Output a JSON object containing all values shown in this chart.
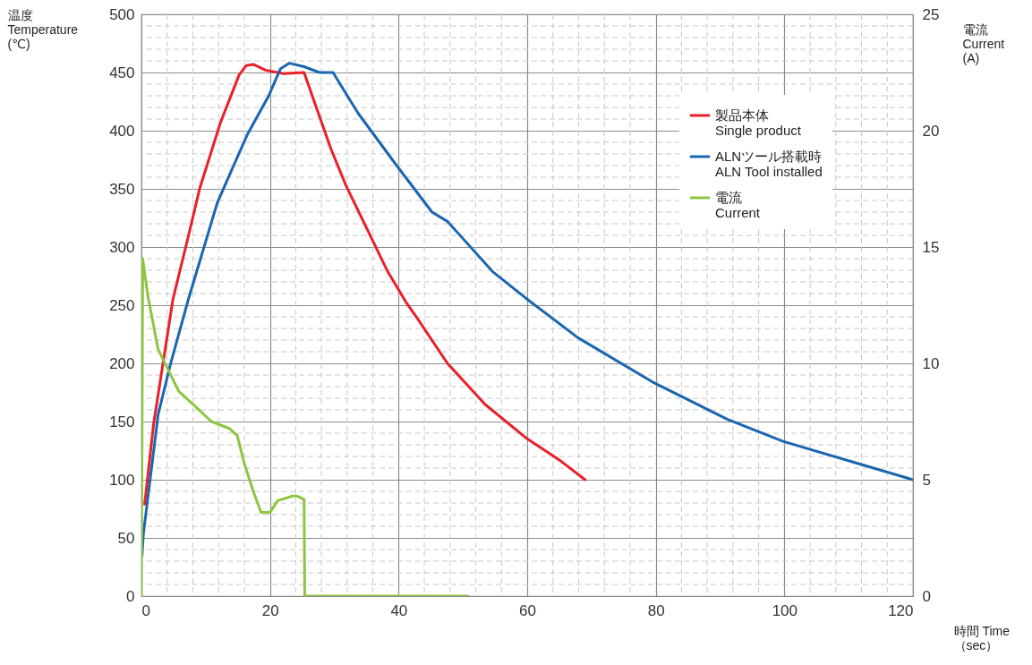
{
  "chart_data": {
    "type": "line",
    "xlabel": "時間 Time\n（sec）",
    "ylabel": "温度\nTemperature\n(℃)",
    "y2label": "電流\nCurrent\n(A)",
    "xlim": [
      0,
      120
    ],
    "xticks": [
      0,
      20,
      40,
      60,
      80,
      100,
      120
    ],
    "ylim": [
      0,
      500
    ],
    "yticks": [
      0,
      50,
      100,
      150,
      200,
      250,
      300,
      350,
      400,
      450,
      500
    ],
    "y2lim": [
      0,
      25
    ],
    "y2ticks": [
      0,
      5,
      10,
      15,
      20,
      25
    ],
    "grid": true,
    "legend": "top right",
    "line_style": "solid",
    "marker": "none",
    "series": [
      {
        "name": "製品本体\nSingle product",
        "color": "#e8202a",
        "x": [
          0.5,
          1.9,
          4.9,
          7.2,
          9.1,
          12.3,
          15.2,
          16.3,
          17.4,
          19.3,
          22.1,
          25.3,
          27.2,
          29.5,
          31.8,
          34.7,
          38.3,
          41.1,
          43,
          47.6,
          53.4,
          59.8,
          65,
          69
        ],
        "values": [
          79,
          148,
          255,
          307,
          351,
          407,
          448,
          456,
          457,
          452,
          449,
          450,
          420,
          384,
          353,
          320,
          279,
          253,
          238,
          200,
          165,
          136,
          117,
          100
        ]
      },
      {
        "name": "ALNツール搭載時\nALN Tool installed",
        "color": "#1a66b0",
        "x": [
          0.1,
          0.3,
          2.6,
          4.5,
          7.3,
          11.8,
          16.5,
          19.8,
          21.6,
          23,
          25.3,
          27.7,
          29.8,
          33.7,
          39.7,
          45.2,
          47.6,
          54.6,
          59.8,
          67.9,
          79.5,
          91.1,
          99.8,
          111.4,
          120
        ],
        "values": [
          35,
          53,
          156,
          199,
          255,
          338,
          397,
          430,
          453,
          458,
          455,
          450,
          450,
          415,
          370,
          330,
          322,
          279,
          256,
          222,
          184,
          152,
          133,
          114,
          100
        ]
      },
      {
        "name": "電流\nCurrent",
        "color": "#8cc63f",
        "axis": "y2",
        "x": [
          0,
          0.2,
          1,
          2.6,
          5.8,
          8.2,
          10.9,
          13.7,
          14.9,
          16,
          17.4,
          18.6,
          20,
          21.2,
          23.5,
          24.2,
          25.3,
          25.4,
          50.8
        ],
        "values": [
          0,
          14.5,
          12.9,
          10.6,
          8.8,
          8.2,
          7.5,
          7.2,
          6.9,
          5.7,
          4.5,
          3.6,
          3.6,
          4.1,
          4.3,
          4.3,
          4.15,
          0,
          0
        ]
      }
    ]
  }
}
